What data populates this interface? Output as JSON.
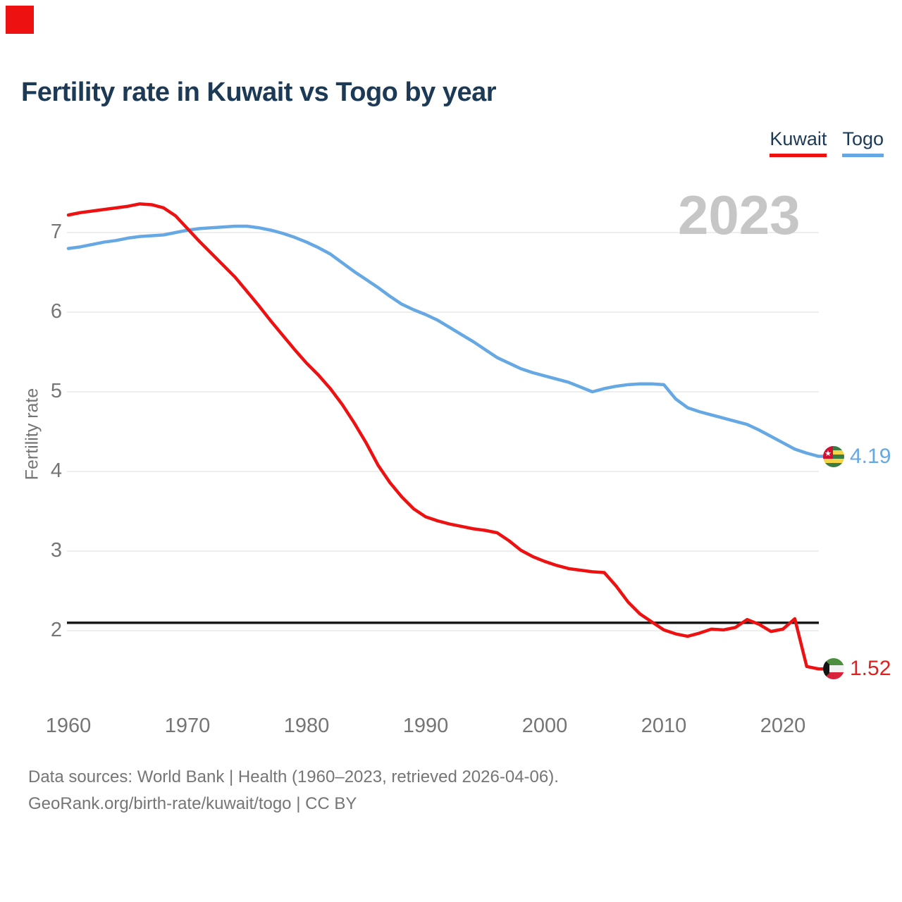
{
  "title": "Fertility rate in Kuwait vs Togo by year",
  "watermark": "2023",
  "legend": [
    {
      "label": "Kuwait",
      "color": "#ee1111"
    },
    {
      "label": "Togo",
      "color": "#66a8e4"
    }
  ],
  "y_axis": {
    "label": "Fertility rate",
    "ticks": [
      7,
      6,
      5,
      4,
      3,
      2
    ]
  },
  "x_axis": {
    "ticks": [
      1960,
      1970,
      1980,
      1990,
      2000,
      2010,
      2020
    ]
  },
  "end_labels": [
    {
      "series": "Togo",
      "value": "4.19",
      "flag": "togo-flag"
    },
    {
      "series": "Kuwait",
      "value": "1.52",
      "flag": "kuwait-flag"
    }
  ],
  "footer": {
    "line1": "Data sources: World Bank | Health (1960–2023, retrieved 2026-04-06).",
    "line2": "GeoRank.org/birth-rate/kuwait/togo | CC BY"
  },
  "colors": {
    "marker": "#ee1111",
    "title": "#1c3a55",
    "muted": "#757575",
    "watermark": "#c6c6c6",
    "grid": "#e8e8e8",
    "reference": "#1a1a1a",
    "kuwait": "#ee1111",
    "togo": "#66a8e4"
  },
  "chart_data": {
    "type": "line",
    "title": "Fertility rate in Kuwait vs Togo by year",
    "xlabel": "",
    "ylabel": "Fertility rate",
    "xlim": [
      1960,
      2023
    ],
    "ylim": [
      1.4,
      7.5
    ],
    "grid": true,
    "legend_position": "top-right",
    "reference_line": 2.1,
    "x": [
      1960,
      1961,
      1962,
      1963,
      1964,
      1965,
      1966,
      1967,
      1968,
      1969,
      1970,
      1971,
      1972,
      1973,
      1974,
      1975,
      1976,
      1977,
      1978,
      1979,
      1980,
      1981,
      1982,
      1983,
      1984,
      1985,
      1986,
      1987,
      1988,
      1989,
      1990,
      1991,
      1992,
      1993,
      1994,
      1995,
      1996,
      1997,
      1998,
      1999,
      2000,
      2001,
      2002,
      2003,
      2004,
      2005,
      2006,
      2007,
      2008,
      2009,
      2010,
      2011,
      2012,
      2013,
      2014,
      2015,
      2016,
      2017,
      2018,
      2019,
      2020,
      2021,
      2022,
      2023
    ],
    "series": [
      {
        "name": "Togo",
        "color": "#66a8e4",
        "end_value": 4.19,
        "values": [
          6.8,
          6.82,
          6.85,
          6.88,
          6.9,
          6.93,
          6.95,
          6.96,
          6.97,
          7.0,
          7.03,
          7.05,
          7.06,
          7.07,
          7.08,
          7.08,
          7.06,
          7.03,
          6.99,
          6.94,
          6.88,
          6.81,
          6.73,
          6.62,
          6.51,
          6.41,
          6.31,
          6.2,
          6.1,
          6.03,
          5.97,
          5.9,
          5.81,
          5.72,
          5.63,
          5.53,
          5.43,
          5.36,
          5.29,
          5.24,
          5.2,
          5.16,
          5.12,
          5.06,
          5.0,
          5.04,
          5.07,
          5.09,
          5.1,
          5.1,
          5.09,
          4.91,
          4.8,
          4.75,
          4.71,
          4.67,
          4.63,
          4.59,
          4.52,
          4.44,
          4.36,
          4.28,
          4.23,
          4.19
        ]
      },
      {
        "name": "Kuwait",
        "color": "#ee1111",
        "end_value": 1.52,
        "values": [
          7.22,
          7.25,
          7.27,
          7.29,
          7.31,
          7.33,
          7.36,
          7.35,
          7.31,
          7.21,
          7.05,
          6.89,
          6.74,
          6.59,
          6.44,
          6.26,
          6.08,
          5.89,
          5.71,
          5.53,
          5.36,
          5.21,
          5.04,
          4.84,
          4.61,
          4.36,
          4.08,
          3.86,
          3.68,
          3.53,
          3.43,
          3.38,
          3.34,
          3.31,
          3.28,
          3.26,
          3.23,
          3.13,
          3.01,
          2.93,
          2.87,
          2.82,
          2.78,
          2.76,
          2.74,
          2.73,
          2.56,
          2.36,
          2.21,
          2.11,
          2.01,
          1.96,
          1.93,
          1.97,
          2.02,
          2.01,
          2.04,
          2.14,
          2.08,
          1.99,
          2.02,
          2.15,
          1.55,
          1.52
        ]
      }
    ]
  }
}
